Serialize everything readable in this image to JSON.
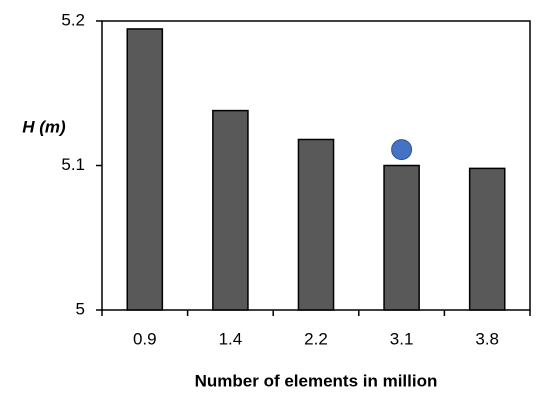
{
  "chart_data": {
    "type": "bar",
    "xlabel": "Number of elements in million",
    "ylabel": "H (m)",
    "categories": [
      "0.9",
      "1.4",
      "2.2",
      "3.1",
      "3.8"
    ],
    "series": [
      {
        "type": "bar",
        "color": "#595959",
        "values": [
          5.1945,
          5.138,
          5.118,
          5.1,
          5.098
        ]
      },
      {
        "type": "scatter",
        "color": "#4472c4",
        "values": [
          null,
          null,
          null,
          5.111,
          null
        ]
      }
    ],
    "ylim": [
      5,
      5.2
    ],
    "yticks": [
      5,
      5.1,
      5.2
    ]
  }
}
